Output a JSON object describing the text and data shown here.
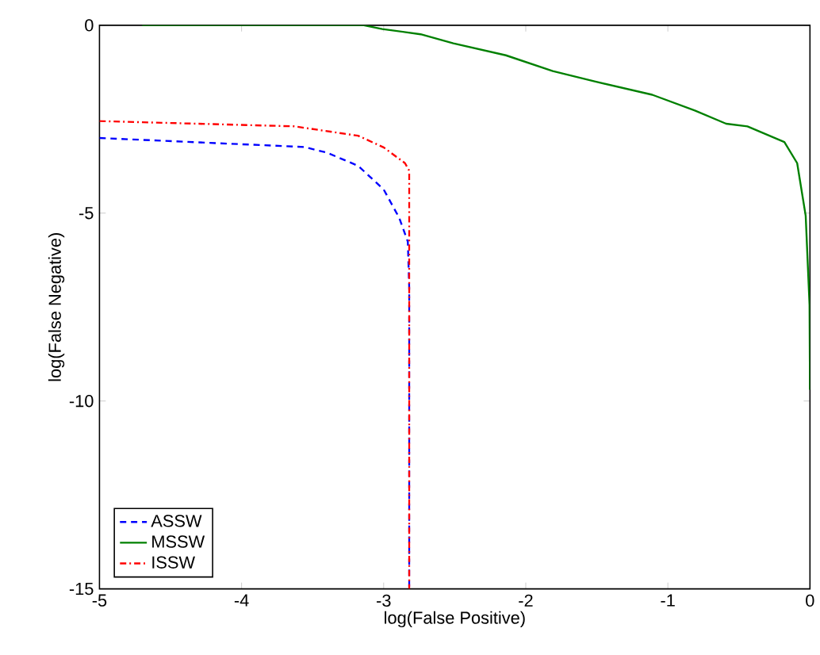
{
  "chart_data": {
    "type": "line",
    "xlabel": "log(False Positive)",
    "ylabel": "log(False Negative)",
    "xlim": [
      -5,
      0
    ],
    "ylim": [
      -15,
      0
    ],
    "xticks": [
      -5,
      -4,
      -3,
      -2,
      -1,
      0
    ],
    "yticks": [
      -15,
      -10,
      -5,
      0
    ],
    "grid": false,
    "legend": "bottom left",
    "series": [
      {
        "name": "ASSW",
        "color": "#0000ff",
        "line_style": "dashed",
        "x": [
          -5,
          -3.56,
          -3.4,
          -3.18,
          -3.0,
          -2.89,
          -2.83,
          -2.82,
          -2.82
        ],
        "values": [
          -3.0,
          -3.24,
          -3.39,
          -3.74,
          -4.37,
          -5.13,
          -5.76,
          -7.0,
          -15
        ]
      },
      {
        "name": "MSSW",
        "color": "#008000",
        "line_style": "solid",
        "x": [
          -4.7,
          -3.14,
          -3.01,
          -2.74,
          -2.51,
          -2.14,
          -1.81,
          -1.51,
          -1.11,
          -0.81,
          -0.59,
          -0.44,
          -0.18,
          -0.09,
          -0.03,
          -0.003,
          0
        ],
        "values": [
          0,
          0,
          -0.1,
          -0.24,
          -0.48,
          -0.8,
          -1.22,
          -1.5,
          -1.85,
          -2.27,
          -2.62,
          -2.69,
          -3.11,
          -3.67,
          -5.07,
          -7.44,
          -9.7
        ]
      },
      {
        "name": "ISSW",
        "color": "#ff0000",
        "line_style": "dashdot",
        "x": [
          -5,
          -3.63,
          -3.18,
          -3.0,
          -2.85,
          -2.82,
          -2.82
        ],
        "values": [
          -2.55,
          -2.69,
          -2.94,
          -3.25,
          -3.67,
          -3.87,
          -15
        ]
      }
    ]
  }
}
